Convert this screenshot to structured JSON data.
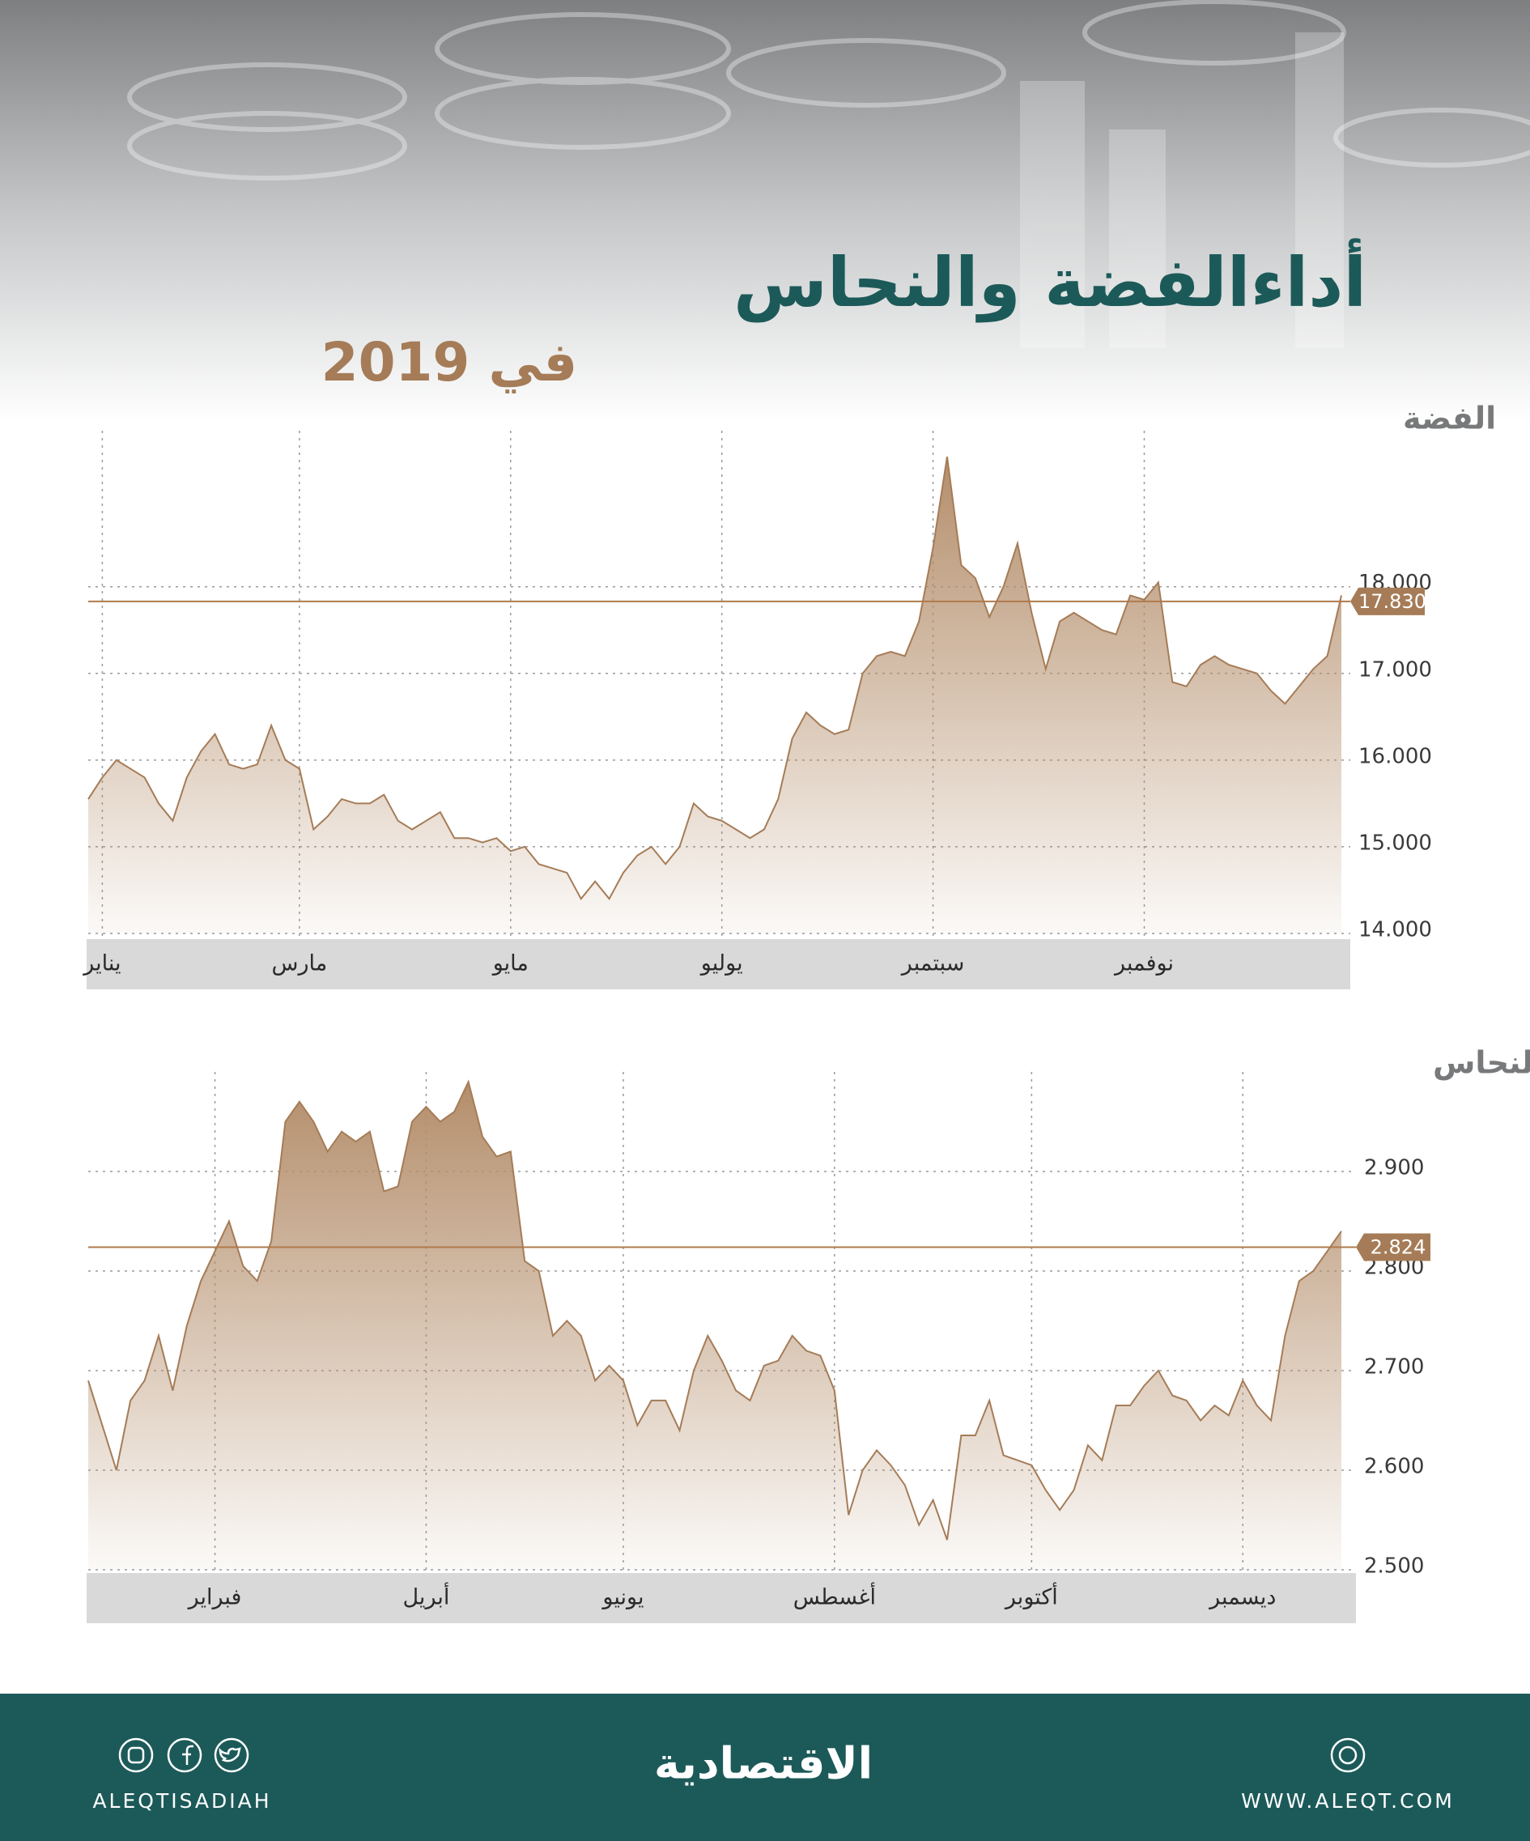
{
  "header": {
    "title": "أداءالفضة والنحاس",
    "subtitle": "في 2019"
  },
  "chart_data": [
    {
      "type": "area",
      "title": "الفضة",
      "color": "#a57c57",
      "xlim": [
        0,
        89
      ],
      "xticks": [
        {
          "value": 1,
          "label": "يناير"
        },
        {
          "value": 15,
          "label": "مارس"
        },
        {
          "value": 30,
          "label": "مايو"
        },
        {
          "value": 45,
          "label": "يوليو"
        },
        {
          "value": 60,
          "label": "سبتمبر"
        },
        {
          "value": 75,
          "label": "نوفمبر"
        }
      ],
      "ylim": [
        14,
        19.8
      ],
      "yticks": [
        {
          "value": 14,
          "label": "14.000"
        },
        {
          "value": 15,
          "label": "15.000"
        },
        {
          "value": 16,
          "label": "16.000"
        },
        {
          "value": 17,
          "label": "17.000"
        },
        {
          "value": 18,
          "label": "18.000"
        }
      ],
      "reference": {
        "value": 17.83,
        "label": "17.830"
      },
      "values": [
        15.55,
        15.8,
        16.0,
        15.9,
        15.8,
        15.5,
        15.3,
        15.8,
        16.1,
        16.3,
        15.95,
        15.9,
        15.95,
        16.4,
        16.0,
        15.9,
        15.2,
        15.35,
        15.55,
        15.5,
        15.5,
        15.6,
        15.3,
        15.2,
        15.3,
        15.4,
        15.1,
        15.1,
        15.05,
        15.1,
        14.95,
        15.0,
        14.8,
        14.75,
        14.7,
        14.4,
        14.6,
        14.4,
        14.7,
        14.9,
        15.0,
        14.8,
        15.0,
        15.5,
        15.35,
        15.3,
        15.2,
        15.1,
        15.2,
        15.55,
        16.25,
        16.55,
        16.4,
        16.3,
        16.35,
        17.0,
        17.2,
        17.25,
        17.2,
        17.6,
        18.45,
        19.5,
        18.25,
        18.1,
        17.65,
        18.0,
        18.5,
        17.7,
        17.05,
        17.6,
        17.7,
        17.6,
        17.5,
        17.45,
        17.9,
        17.85,
        18.05,
        16.9,
        16.85,
        17.1,
        17.2,
        17.1,
        17.05,
        17.0,
        16.8,
        16.65,
        16.85,
        17.05,
        17.2,
        17.9
      ]
    },
    {
      "type": "area",
      "title": "النحاس",
      "color": "#a57c57",
      "xlim": [
        0,
        89
      ],
      "xticks": [
        {
          "value": 9,
          "label": "فبراير"
        },
        {
          "value": 24,
          "label": "أبريل"
        },
        {
          "value": 38,
          "label": "يونيو"
        },
        {
          "value": 53,
          "label": "أغسطس"
        },
        {
          "value": 67,
          "label": "أكتوبر"
        },
        {
          "value": 82,
          "label": "ديسمبر"
        }
      ],
      "ylim": [
        2.5,
        3.0
      ],
      "yticks": [
        {
          "value": 2.5,
          "label": "2.500"
        },
        {
          "value": 2.6,
          "label": "2.600"
        },
        {
          "value": 2.7,
          "label": "2.700"
        },
        {
          "value": 2.8,
          "label": "2.800"
        },
        {
          "value": 2.9,
          "label": "2.900"
        }
      ],
      "reference": {
        "value": 2.824,
        "label": "2.824"
      },
      "values": [
        2.69,
        2.645,
        2.6,
        2.67,
        2.69,
        2.735,
        2.68,
        2.745,
        2.79,
        2.82,
        2.85,
        2.805,
        2.79,
        2.83,
        2.95,
        2.97,
        2.95,
        2.92,
        2.94,
        2.93,
        2.94,
        2.88,
        2.885,
        2.95,
        2.965,
        2.95,
        2.96,
        2.99,
        2.935,
        2.915,
        2.92,
        2.81,
        2.8,
        2.735,
        2.75,
        2.735,
        2.69,
        2.705,
        2.69,
        2.645,
        2.67,
        2.67,
        2.64,
        2.7,
        2.735,
        2.71,
        2.68,
        2.67,
        2.705,
        2.71,
        2.735,
        2.72,
        2.715,
        2.68,
        2.555,
        2.6,
        2.62,
        2.605,
        2.585,
        2.545,
        2.57,
        2.53,
        2.635,
        2.635,
        2.67,
        2.615,
        2.61,
        2.605,
        2.58,
        2.56,
        2.58,
        2.625,
        2.61,
        2.665,
        2.665,
        2.685,
        2.7,
        2.675,
        2.67,
        2.65,
        2.665,
        2.655,
        2.69,
        2.665,
        2.65,
        2.735,
        2.79,
        2.8,
        2.82,
        2.84
      ]
    }
  ],
  "footer": {
    "social": "ALEQTISADIAH",
    "logo": "الاقتصادية",
    "website": "WWW.ALEQT.COM"
  }
}
